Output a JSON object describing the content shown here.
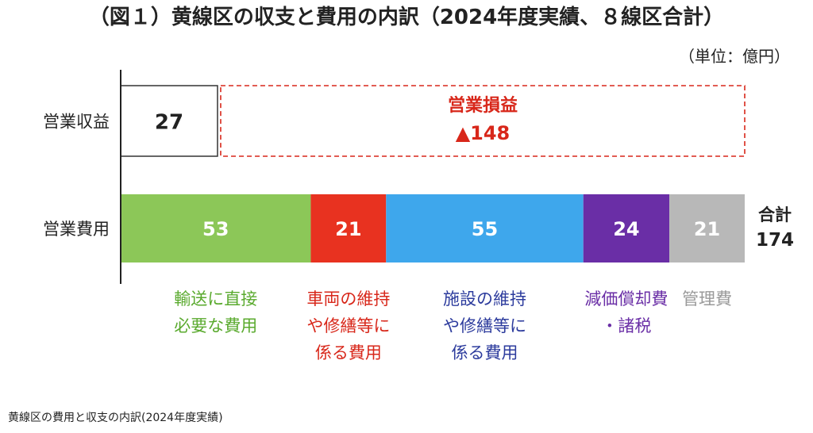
{
  "chart_data": {
    "type": "bar",
    "title": "（図１）黄線区の収支と費用の内訳（2024年度実績、８線区合計）",
    "unit": "（単位：億円）",
    "categories": [
      "営業収益",
      "営業費用"
    ],
    "revenue": {
      "label": "営業収益",
      "value": 27,
      "loss_label": "営業損益",
      "loss_value": "▲148"
    },
    "expenses": {
      "label": "営業費用",
      "total_label": "合計",
      "total": 174,
      "segments": [
        {
          "name": "輸送に直接\n必要な費用",
          "value": 53,
          "color": "#8cc758",
          "label_color": "#5aaa2e"
        },
        {
          "name": "車両の維持\nや修繕等に\n係る費用",
          "value": 21,
          "color": "#e83220",
          "label_color": "#d8271a"
        },
        {
          "name": "施設の維持\nや修繕等に\n係る費用",
          "value": 55,
          "color": "#3ea7ec",
          "label_color": "#2c3b9d"
        },
        {
          "name": "減価償却費\n・諸税",
          "value": 24,
          "color": "#6a2ea6",
          "label_color": "#6a2ea6"
        },
        {
          "name": "管理費",
          "value": 21,
          "color": "#b8b8b8",
          "label_color": "#9a9a9a"
        }
      ]
    },
    "colors": {
      "loss": "#d8271a",
      "axis": "#222222"
    }
  },
  "caption": "黄線区の費用と収支の内訳(2024年度実績)"
}
